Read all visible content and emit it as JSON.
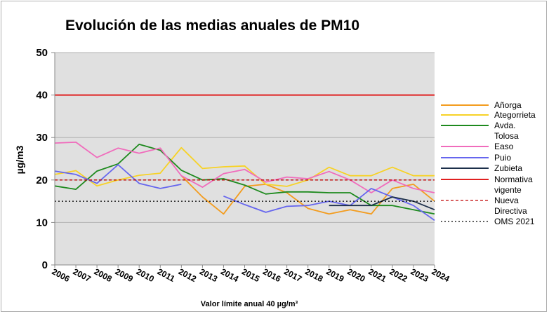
{
  "chart_data": {
    "type": "line",
    "title": "Evolución de las medias anuales de PM10",
    "xlabel": "Valor límite anual 40 µg/m³",
    "ylabel": "µg/m3",
    "ylim": [
      0,
      50
    ],
    "yticks": [
      "0",
      "10",
      "20",
      "30",
      "40",
      "50"
    ],
    "categories": [
      "2006",
      "2007",
      "2008",
      "2009",
      "2010",
      "2011",
      "2012",
      "2013",
      "2014",
      "2015",
      "2016",
      "2017",
      "2018",
      "2019",
      "2020",
      "2021",
      "2022",
      "2023",
      "2024"
    ],
    "grid": true,
    "legend_position": "right",
    "series": [
      {
        "name": "Añorga",
        "color": "#f39c1e",
        "dash": "solid",
        "values": [
          null,
          null,
          null,
          null,
          null,
          null,
          21,
          16,
          12,
          18.5,
          19,
          17,
          13.3,
          12,
          13,
          12,
          18,
          19,
          15
        ]
      },
      {
        "name": "Ategorrieta",
        "color": "#f7d226",
        "dash": "solid",
        "values": [
          21.3,
          22.2,
          18.6,
          20,
          21.1,
          21.6,
          27.6,
          22.7,
          23.1,
          23.3,
          19,
          18.5,
          20,
          23,
          21,
          21,
          23,
          21,
          21
        ]
      },
      {
        "name": "Avda. Tolosa",
        "color": "#1e8a1e",
        "dash": "solid",
        "values": [
          18.6,
          17.8,
          22.1,
          23.8,
          28.4,
          27,
          22.3,
          20,
          20.3,
          18.8,
          16.7,
          17.2,
          17.2,
          17,
          17,
          14,
          14,
          13,
          12
        ]
      },
      {
        "name": "Easo",
        "color": "#f06cbc",
        "dash": "solid",
        "values": [
          28.7,
          28.9,
          25.3,
          27.5,
          26.3,
          27.5,
          21,
          18.3,
          21.5,
          22.5,
          19.5,
          20.7,
          20.3,
          22,
          20,
          17,
          20,
          18,
          17
        ]
      },
      {
        "name": "Puio",
        "color": "#6666ee",
        "dash": "solid",
        "values": [
          22.1,
          21.3,
          19.2,
          23.6,
          19.2,
          18,
          19,
          null,
          16.2,
          14.2,
          12.4,
          13.8,
          14,
          15,
          14,
          18,
          16,
          14,
          10.5
        ]
      },
      {
        "name": "Zubieta",
        "color": "#1c2f4a",
        "dash": "solid",
        "values": [
          null,
          null,
          null,
          null,
          null,
          null,
          null,
          null,
          null,
          null,
          null,
          null,
          null,
          14,
          14,
          14,
          16,
          15,
          13
        ]
      },
      {
        "name": "Normativa vigente",
        "color": "#e02020",
        "dash": "solid",
        "values": [
          40,
          40,
          40,
          40,
          40,
          40,
          40,
          40,
          40,
          40,
          40,
          40,
          40,
          40,
          40,
          40,
          40,
          40,
          40
        ]
      },
      {
        "name": "Nueva Directiva",
        "color": "#c00000",
        "dash": "dashed",
        "values": [
          20,
          20,
          20,
          20,
          20,
          20,
          20,
          20,
          20,
          20,
          20,
          20,
          20,
          20,
          20,
          20,
          20,
          20,
          20
        ]
      },
      {
        "name": "OMS 2021",
        "color": "#000000",
        "dash": "dotted",
        "values": [
          15,
          15,
          15,
          15,
          15,
          15,
          15,
          15,
          15,
          15,
          15,
          15,
          15,
          15,
          15,
          15,
          15,
          15,
          15
        ]
      }
    ]
  }
}
